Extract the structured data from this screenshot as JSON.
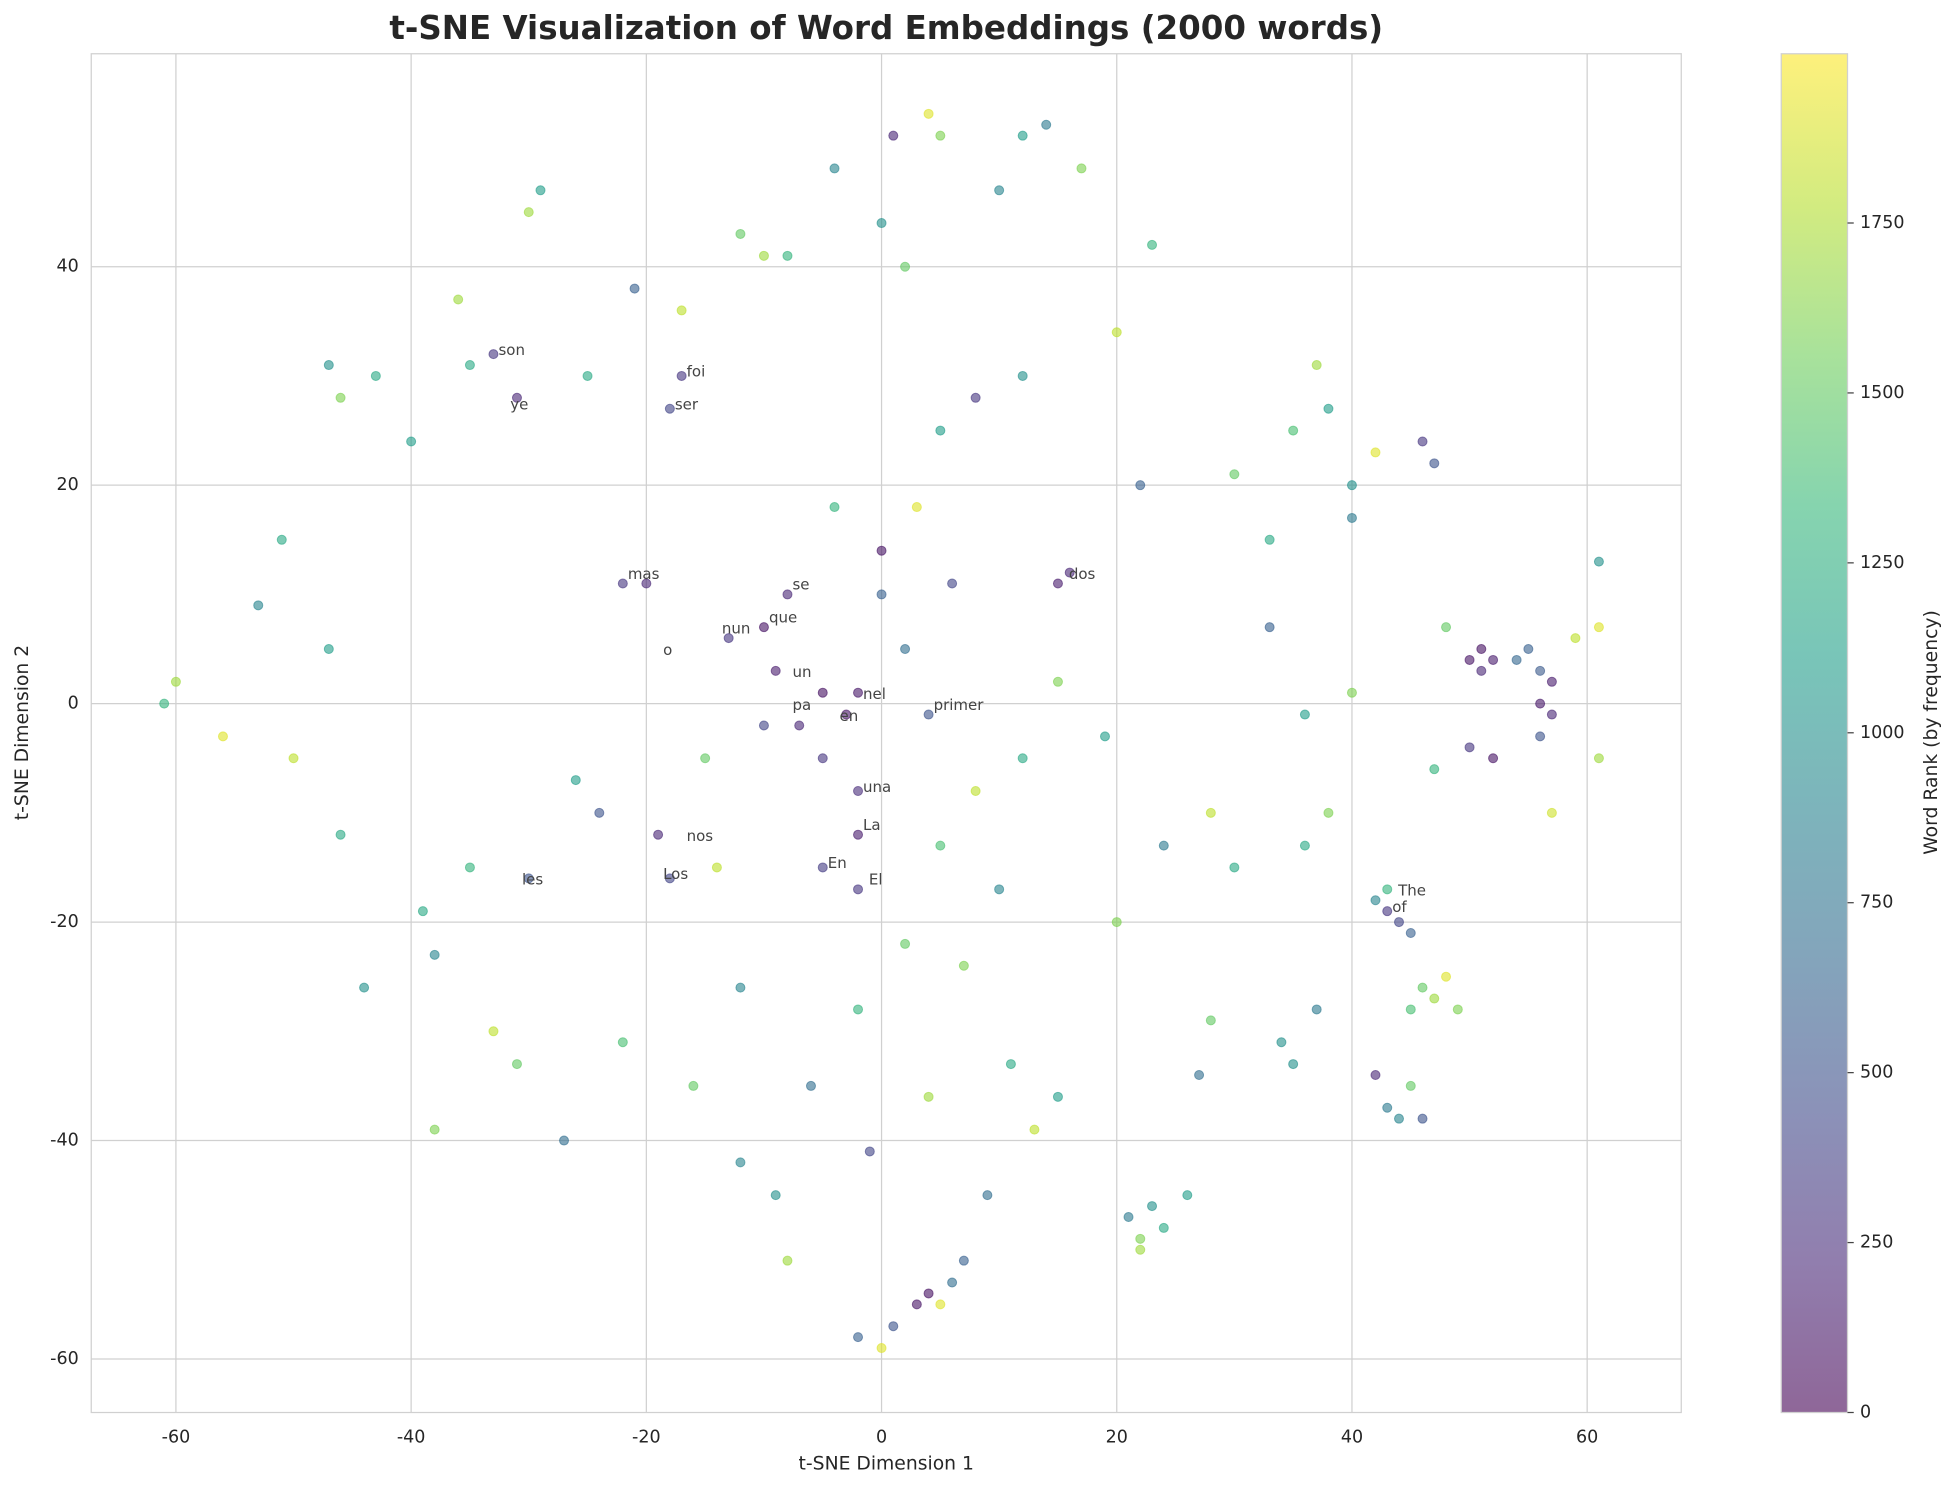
{
  "chart_data": {
    "type": "scatter",
    "title": "t-SNE Visualization of Word Embeddings (2000 words)",
    "x_label": "t-SNE Dimension 1",
    "y_label": "t-SNE Dimension 2",
    "colorbar_label": "Word Rank (by frequency)",
    "colormap": "viridis",
    "alpha": 0.6,
    "grid": true,
    "xlim": [
      -67.2,
      68
    ],
    "ylim": [
      -64.9,
      59.5
    ],
    "xticks": [
      -60,
      -40,
      -20,
      0,
      20,
      40,
      60
    ],
    "yticks": [
      -60,
      -40,
      -20,
      0,
      20,
      40
    ],
    "clim": [
      0,
      1999
    ],
    "cticks": [
      0,
      250,
      500,
      750,
      1000,
      1250,
      1500,
      1750
    ],
    "x": [
      50,
      51,
      52,
      51,
      55,
      54,
      56,
      57,
      56,
      57,
      56,
      52,
      50,
      61,
      61,
      59,
      61,
      57,
      43,
      44,
      42,
      45,
      43,
      46,
      47,
      48,
      49,
      45,
      43,
      44,
      46,
      42,
      45,
      21,
      22,
      23,
      24,
      22,
      26,
      3,
      4,
      5,
      6,
      7,
      1,
      0,
      -2,
      1,
      4,
      5,
      12,
      14,
      10,
      17,
      -4,
      -29,
      -30,
      0,
      2,
      -8,
      -10,
      -12,
      -33,
      -31,
      -36,
      -35,
      -40,
      -47,
      -46,
      -43,
      -25,
      -21,
      -17,
      -18,
      -17,
      -61,
      -60,
      -56,
      -53,
      -51,
      -50,
      -47,
      -46,
      -44,
      -38,
      -38,
      -39,
      -33,
      -31,
      -27,
      -35,
      -30,
      -26,
      -22,
      -20,
      -24,
      -19,
      -18,
      -15,
      -22,
      -14,
      -12,
      -9,
      -8,
      -12,
      -6,
      -16,
      -10,
      -8,
      -13,
      -9,
      -5,
      -2,
      -3,
      -7,
      -10,
      -5,
      -2,
      -2,
      -5,
      -2,
      0,
      0,
      2,
      4,
      -4,
      3,
      6,
      8,
      5,
      10,
      12,
      15,
      16,
      15,
      8,
      5,
      12,
      20,
      23,
      22,
      19,
      20,
      24,
      28,
      30,
      28,
      27,
      34,
      30,
      33,
      35,
      37,
      38,
      40,
      40,
      42,
      46,
      47,
      47,
      38,
      36,
      35,
      37,
      48,
      33,
      36,
      40,
      11,
      13,
      15,
      9,
      -1,
      -2,
      2,
      4,
      7
    ],
    "y": [
      4,
      5,
      4,
      3,
      5,
      4,
      3,
      2,
      0,
      -1,
      -3,
      -5,
      -4,
      13,
      7,
      6,
      -5,
      -10,
      -19,
      -20,
      -18,
      -21,
      -17,
      -26,
      -27,
      -25,
      -28,
      -28,
      -37,
      -38,
      -38,
      -34,
      -35,
      -47,
      -49,
      -46,
      -48,
      -50,
      -45,
      -55,
      -54,
      -55,
      -53,
      -51,
      -57,
      -59,
      -58,
      52,
      54,
      52,
      52,
      53,
      47,
      49,
      49,
      47,
      45,
      44,
      40,
      41,
      41,
      43,
      32,
      28,
      37,
      31,
      24,
      31,
      28,
      30,
      30,
      38,
      30,
      27,
      36,
      0,
      2,
      -3,
      9,
      15,
      -5,
      5,
      -12,
      -26,
      -39,
      -23,
      -19,
      -30,
      -33,
      -40,
      -15,
      -16,
      -7,
      11,
      11,
      -10,
      -12,
      -16,
      -5,
      -31,
      -15,
      -26,
      -45,
      -51,
      -42,
      -35,
      -35,
      7,
      10,
      6,
      3,
      1,
      1,
      -1,
      -2,
      -2,
      -5,
      -8,
      -12,
      -15,
      -17,
      14,
      10,
      5,
      -1,
      18,
      18,
      11,
      -8,
      -13,
      -17,
      -5,
      2,
      12,
      11,
      28,
      25,
      30,
      34,
      42,
      20,
      -3,
      -20,
      -13,
      -10,
      -15,
      -29,
      -34,
      -31,
      21,
      15,
      25,
      31,
      27,
      20,
      17,
      23,
      24,
      22,
      -6,
      -10,
      -13,
      -33,
      -28,
      7,
      7,
      -1,
      1,
      -33,
      -39,
      -36,
      -45,
      -41,
      -28,
      -22,
      -36,
      -24
    ],
    "c": [
      100,
      80,
      150,
      200,
      600,
      650,
      550,
      150,
      120,
      200,
      500,
      100,
      300,
      1000,
      1900,
      1800,
      1700,
      1850,
      300,
      400,
      900,
      600,
      1300,
      1500,
      1700,
      1900,
      1600,
      1400,
      800,
      900,
      500,
      200,
      1500,
      800,
      1600,
      1000,
      1200,
      1700,
      1100,
      100,
      80,
      1900,
      700,
      600,
      500,
      1900,
      600,
      200,
      1900,
      1600,
      1100,
      800,
      900,
      1600,
      900,
      1100,
      1700,
      1000,
      1500,
      1300,
      1700,
      1500,
      300,
      200,
      1700,
      1200,
      1100,
      1000,
      1600,
      1200,
      1200,
      600,
      300,
      400,
      1800,
      1300,
      1700,
      1900,
      900,
      1200,
      1800,
      1100,
      1200,
      1000,
      1600,
      900,
      1200,
      1800,
      1500,
      700,
      1300,
      500,
      1100,
      300,
      200,
      500,
      200,
      400,
      1500,
      1400,
      1800,
      900,
      1000,
      1700,
      900,
      700,
      1500,
      100,
      200,
      300,
      150,
      80,
      120,
      100,
      200,
      400,
      300,
      250,
      150,
      350,
      300,
      100,
      600,
      700,
      500,
      1300,
      1900,
      400,
      1800,
      1400,
      900,
      1200,
      1600,
      200,
      150,
      300,
      1100,
      1000,
      1800,
      1300,
      600,
      1100,
      1600,
      800,
      1800,
      1200,
      1500,
      700,
      1000,
      1500,
      1200,
      1400,
      1700,
      1100,
      1000,
      800,
      1900,
      300,
      500,
      1300,
      1600,
      1200,
      1000,
      800,
      1500,
      600,
      1100,
      1600,
      1200,
      1800,
      1100,
      700,
      400,
      1300,
      1500,
      1700,
      1600
    ],
    "annotations": [
      {
        "text": "son",
        "x": -33,
        "y": 32
      },
      {
        "text": "foi",
        "x": -17,
        "y": 30
      },
      {
        "text": "ser",
        "x": -18,
        "y": 27
      },
      {
        "text": "ye",
        "x": -32,
        "y": 27
      },
      {
        "text": "mas",
        "x": -22,
        "y": 11.5
      },
      {
        "text": "se",
        "x": -8,
        "y": 10.5
      },
      {
        "text": "que",
        "x": -10,
        "y": 7.5
      },
      {
        "text": "nun",
        "x": -14,
        "y": 6.5
      },
      {
        "text": "o",
        "x": -19,
        "y": 4.5
      },
      {
        "text": "un",
        "x": -8,
        "y": 2.5
      },
      {
        "text": "nel",
        "x": -2,
        "y": 0.5
      },
      {
        "text": "pa",
        "x": -8,
        "y": -0.5
      },
      {
        "text": "en",
        "x": -4,
        "y": -1.5
      },
      {
        "text": "primer",
        "x": 4,
        "y": -0.5
      },
      {
        "text": "una",
        "x": -2,
        "y": -8
      },
      {
        "text": "La",
        "x": -2,
        "y": -11.5
      },
      {
        "text": "En",
        "x": -5,
        "y": -15
      },
      {
        "text": "El",
        "x": -1.5,
        "y": -16.5
      },
      {
        "text": "nos",
        "x": -17,
        "y": -12.5
      },
      {
        "text": "Los",
        "x": -19,
        "y": -16
      },
      {
        "text": "les",
        "x": -31,
        "y": -16.5
      },
      {
        "text": "dos",
        "x": 15.5,
        "y": 11.5
      },
      {
        "text": "The",
        "x": 43.5,
        "y": -17.5
      },
      {
        "text": "of",
        "x": 43,
        "y": -19
      }
    ]
  }
}
